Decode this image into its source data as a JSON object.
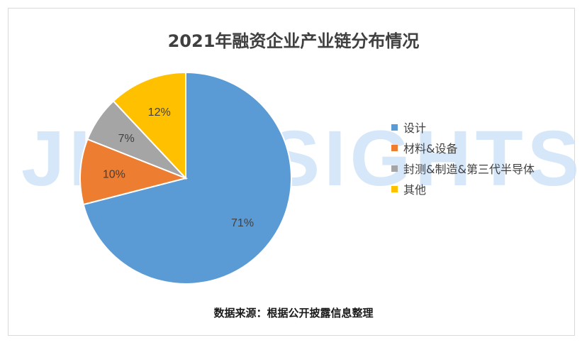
{
  "chart_data": {
    "type": "pie",
    "title": "2021年融资企业产业链分布情况",
    "categories": [
      "设计",
      "材料&设备",
      "封测&制造&第三代半导体",
      "其他"
    ],
    "values": [
      71,
      10,
      7,
      12
    ],
    "labels": [
      "71%",
      "10%",
      "7%",
      "12%"
    ],
    "colors": [
      "#5b9bd5",
      "#ed7d31",
      "#a5a5a5",
      "#ffc000"
    ],
    "legend_position": "right"
  },
  "watermark": "JIN INSIGHTS",
  "source_note": "数据来源：根据公开披露信息整理"
}
